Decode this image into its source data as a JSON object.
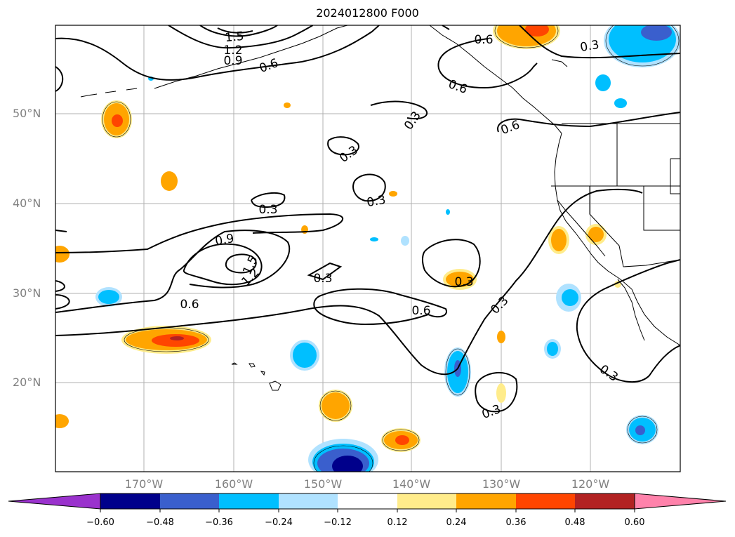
{
  "title": "2024012800 F000",
  "lat_labels": [
    "50°N",
    "40°N",
    "30°N",
    "20°N"
  ],
  "lon_labels": [
    "170°W",
    "160°W",
    "150°W",
    "140°W",
    "130°W",
    "120°W"
  ],
  "contour_labels": [
    "1.5",
    "1.2",
    "0.9",
    "0.6",
    "0.6",
    "0.3",
    "0.6",
    "0.3",
    "0.6",
    "0.3",
    "0.3",
    "0.9",
    "1.2",
    "1.5",
    "0.3",
    "0.6",
    "0.6",
    "0.3",
    "0.3",
    "0.3",
    "0.3",
    "0.3"
  ],
  "colorbar": {
    "ticks": [
      "−0.60",
      "−0.48",
      "−0.36",
      "−0.24",
      "−0.12",
      "0.12",
      "0.24",
      "0.36",
      "0.48",
      "0.60"
    ],
    "colors": [
      "#9a32cd",
      "#00008b",
      "#3a5fcd",
      "#00bfff",
      "#b0e2ff",
      "#ffffff",
      "#ffec8b",
      "#ffa500",
      "#ff4500",
      "#b22222",
      "#ff82ab"
    ]
  }
}
